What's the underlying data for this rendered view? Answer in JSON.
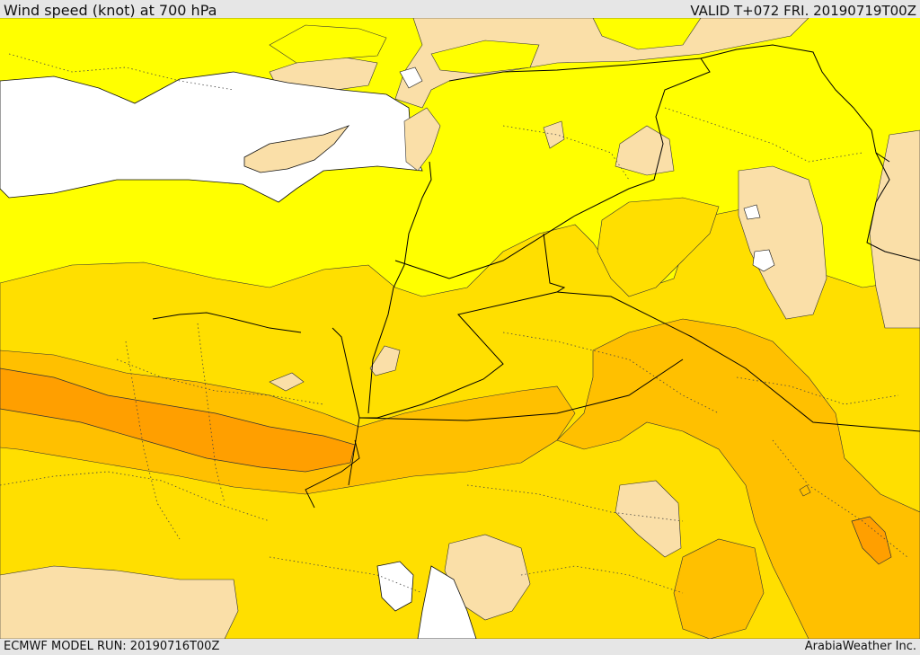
{
  "header": {
    "title": "Wind speed (knot) at 700 hPa",
    "valid": "VALID T+072 FRI. 20190719T00Z"
  },
  "footer": {
    "model_run": "ECMWF MODEL RUN: 20190716T00Z",
    "credit": "ArabiaWeather Inc."
  },
  "palette": {
    "sea": "#ffffff",
    "calm": "#fadfa8",
    "light": "#ffff00",
    "moderate": "#ffdf00",
    "fresh": "#ffc000",
    "strong": "#ff9f00",
    "border": "#000000"
  }
}
